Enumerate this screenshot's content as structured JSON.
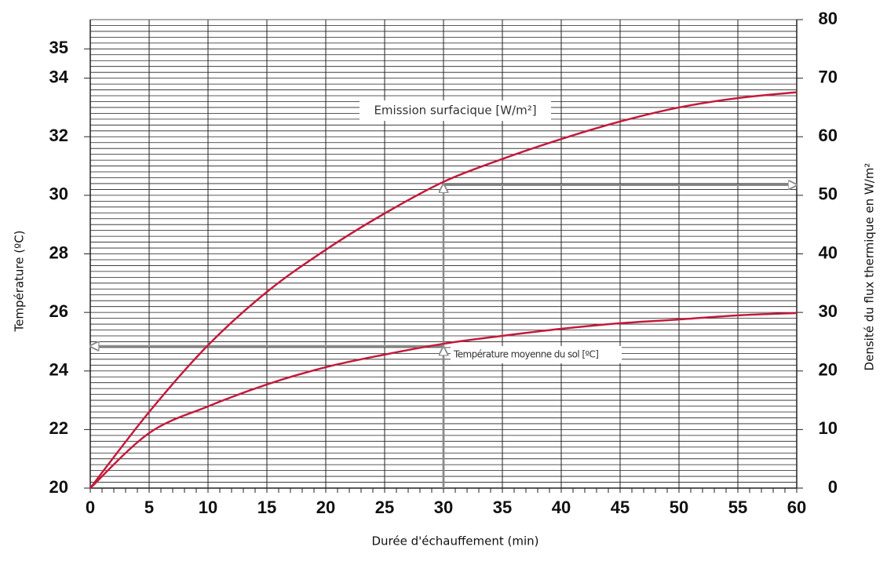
{
  "chart_data": {
    "type": "line",
    "xlabel": "Durée d'échauffement (min)",
    "ylabel": "Température (ºC)",
    "y2label": "Densité du flux thermique en W/m²",
    "x": [
      0,
      5,
      10,
      15,
      20,
      25,
      30,
      35,
      40,
      45,
      50,
      55,
      60
    ],
    "series": [
      {
        "name": "Emission surfacique [W/m²]",
        "color": "#c41a3b",
        "axis": "y2",
        "values": [
          0,
          13.0,
          24.4,
          33.5,
          40.7,
          46.9,
          52.3,
          56.2,
          59.6,
          62.6,
          65.0,
          66.6,
          67.6
        ]
      },
      {
        "name": "Température moyenne du sol [ºC]",
        "color": "#c41a3b",
        "values": [
          20,
          21.88,
          22.79,
          23.54,
          24.13,
          24.56,
          24.93,
          25.2,
          25.44,
          25.63,
          25.76,
          25.9,
          25.98
        ]
      }
    ],
    "xlim": [
      0,
      60
    ],
    "xticks": [
      0,
      5,
      10,
      15,
      20,
      25,
      30,
      35,
      40,
      45,
      50,
      55,
      60
    ],
    "ylim": [
      20,
      36
    ],
    "yticks": [
      20,
      22,
      24,
      26,
      28,
      30,
      32,
      34,
      35
    ],
    "y2lim": [
      0,
      80
    ],
    "y2ticks": [
      0,
      10,
      20,
      30,
      40,
      50,
      60,
      70,
      80
    ],
    "grid": true,
    "minor_grid_step": 0.2,
    "x_minor_tick_step": 1,
    "guide_x": 30,
    "guide_color": "#8a8a8a"
  }
}
